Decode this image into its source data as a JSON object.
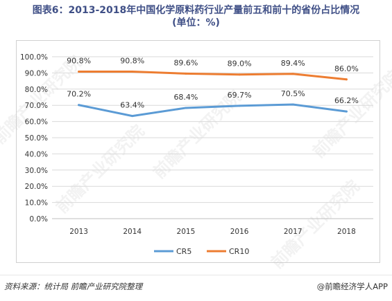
{
  "title": {
    "line1": "图表6：2013-2018年中国化学原料药行业产量前五和前十的省份占比情况",
    "line2": "(单位：%)"
  },
  "source": "资料来源：统计局 前瞻产业研究院整理",
  "brand": "@前瞻经济学人APP",
  "watermark_text": "前瞻产业研究院",
  "chart_data": {
    "type": "line",
    "x": [
      "2013",
      "2014",
      "2015",
      "2016",
      "2017",
      "2018"
    ],
    "ylim": [
      0,
      100
    ],
    "yticks": [
      "0.0%",
      "10.0%",
      "20.0%",
      "30.0%",
      "40.0%",
      "50.0%",
      "60.0%",
      "70.0%",
      "80.0%",
      "90.0%",
      "100.0%"
    ],
    "grid": true,
    "legend": "bottom",
    "series": [
      {
        "name": "CR5",
        "color": "#5b9bd5",
        "values": [
          70.2,
          63.4,
          68.4,
          69.7,
          70.5,
          66.2
        ],
        "labels": [
          "70.2%",
          "63.4%",
          "68.4%",
          "69.7%",
          "70.5%",
          "66.2%"
        ]
      },
      {
        "name": "CR10",
        "color": "#ed7d31",
        "values": [
          90.8,
          90.8,
          89.6,
          89.0,
          89.4,
          86.0
        ],
        "labels": [
          "90.8%",
          "90.8%",
          "89.6%",
          "89.0%",
          "89.4%",
          "86.0%"
        ]
      }
    ]
  }
}
